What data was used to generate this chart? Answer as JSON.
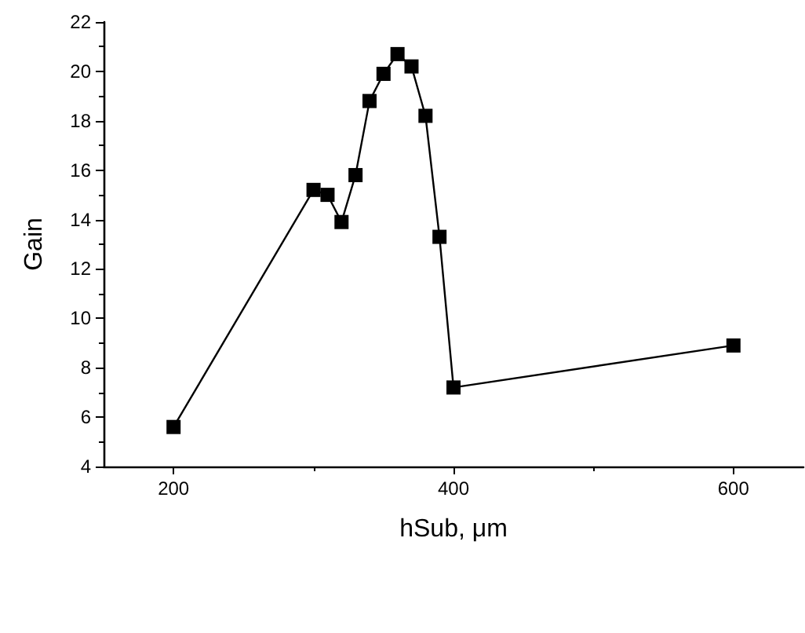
{
  "chart_data": {
    "type": "line",
    "xlabel": "hSub, μm",
    "ylabel": "Gain",
    "marker": "square",
    "line_style": "solid",
    "grid": false,
    "x": [
      200,
      300,
      310,
      320,
      330,
      340,
      350,
      360,
      370,
      380,
      390,
      400,
      600
    ],
    "series": [
      {
        "color": "#000000",
        "values": [
          5.6,
          15.2,
          15.0,
          13.9,
          15.8,
          18.8,
          19.9,
          20.7,
          20.2,
          18.2,
          13.3,
          7.2,
          8.9
        ]
      }
    ],
    "xlim": [
      150,
      650
    ],
    "xticks": [
      200,
      {
        "value": 300,
        "label": null
      },
      400,
      {
        "value": 500,
        "label": null
      },
      600
    ],
    "ylim": [
      4,
      22
    ],
    "yticks": [
      4,
      {
        "value": 5,
        "label": null
      },
      6,
      {
        "value": 7,
        "label": null
      },
      8,
      {
        "value": 9,
        "label": null
      },
      10,
      {
        "value": 11,
        "label": null
      },
      12,
      {
        "value": 13,
        "label": null
      },
      14,
      {
        "value": 15,
        "label": null
      },
      16,
      {
        "value": 17,
        "label": null
      },
      18,
      {
        "value": 19,
        "label": null
      },
      20,
      {
        "value": 21,
        "label": null
      },
      22
    ]
  }
}
